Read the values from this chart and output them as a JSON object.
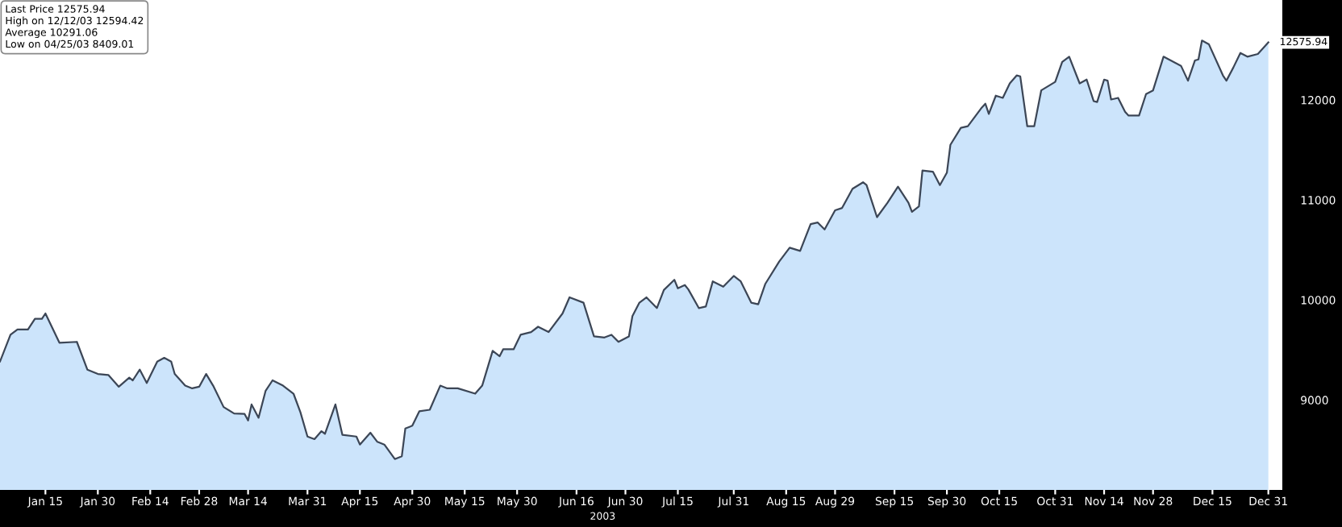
{
  "chart_data": {
    "type": "area",
    "xlabel": "2003",
    "x": [
      "2003-01-02",
      "2003-01-05",
      "2003-01-07",
      "2003-01-10",
      "2003-01-12",
      "2003-01-14",
      "2003-01-15",
      "2003-01-19",
      "2003-01-24",
      "2003-01-27",
      "2003-01-30",
      "2003-02-02",
      "2003-02-05",
      "2003-02-08",
      "2003-02-09",
      "2003-02-11",
      "2003-02-13",
      "2003-02-16",
      "2003-02-18",
      "2003-02-20",
      "2003-02-21",
      "2003-02-24",
      "2003-02-26",
      "2003-02-28",
      "2003-03-02",
      "2003-03-04",
      "2003-03-07",
      "2003-03-10",
      "2003-03-13",
      "2003-03-14",
      "2003-03-15",
      "2003-03-17",
      "2003-03-19",
      "2003-03-21",
      "2003-03-24",
      "2003-03-27",
      "2003-03-29",
      "2003-03-31",
      "2003-04-02",
      "2003-04-04",
      "2003-04-05",
      "2003-04-08",
      "2003-04-10",
      "2003-04-14",
      "2003-04-15",
      "2003-04-18",
      "2003-04-20",
      "2003-04-22",
      "2003-04-25",
      "2003-04-27",
      "2003-04-28",
      "2003-04-30",
      "2003-05-02",
      "2003-05-05",
      "2003-05-08",
      "2003-05-10",
      "2003-05-13",
      "2003-05-18",
      "2003-05-20",
      "2003-05-23",
      "2003-05-25",
      "2003-05-26",
      "2003-05-29",
      "2003-05-31",
      "2003-06-03",
      "2003-06-05",
      "2003-06-08",
      "2003-06-12",
      "2003-06-14",
      "2003-06-18",
      "2003-06-21",
      "2003-06-24",
      "2003-06-26",
      "2003-06-28",
      "2003-07-01",
      "2003-07-02",
      "2003-07-04",
      "2003-07-06",
      "2003-07-09",
      "2003-07-11",
      "2003-07-14",
      "2003-07-15",
      "2003-07-17",
      "2003-07-18",
      "2003-07-21",
      "2003-07-23",
      "2003-07-25",
      "2003-07-28",
      "2003-07-31",
      "2003-08-02",
      "2003-08-05",
      "2003-08-07",
      "2003-08-09",
      "2003-08-13",
      "2003-08-16",
      "2003-08-19",
      "2003-08-22",
      "2003-08-24",
      "2003-08-26",
      "2003-08-29",
      "2003-08-31",
      "2003-09-03",
      "2003-09-06",
      "2003-09-07",
      "2003-09-10",
      "2003-09-13",
      "2003-09-16",
      "2003-09-19",
      "2003-09-20",
      "2003-09-22",
      "2003-09-23",
      "2003-09-26",
      "2003-09-28",
      "2003-09-30",
      "2003-10-01",
      "2003-10-04",
      "2003-10-06",
      "2003-10-10",
      "2003-10-11",
      "2003-10-12",
      "2003-10-14",
      "2003-10-16",
      "2003-10-18",
      "2003-10-20",
      "2003-10-21",
      "2003-10-23",
      "2003-10-25",
      "2003-10-27",
      "2003-10-29",
      "2003-10-31",
      "2003-11-02",
      "2003-11-04",
      "2003-11-07",
      "2003-11-09",
      "2003-11-11",
      "2003-11-12",
      "2003-11-14",
      "2003-11-15",
      "2003-11-16",
      "2003-11-18",
      "2003-11-20",
      "2003-11-21",
      "2003-11-24",
      "2003-11-26",
      "2003-11-28",
      "2003-12-01",
      "2003-12-06",
      "2003-12-08",
      "2003-12-10",
      "2003-12-11",
      "2003-12-12",
      "2003-12-14",
      "2003-12-18",
      "2003-12-19",
      "2003-12-21",
      "2003-12-23",
      "2003-12-25",
      "2003-12-28",
      "2003-12-31"
    ],
    "series": [
      {
        "color": "#cce4fb",
        "values": [
          9384,
          9652,
          9705,
          9705,
          9812,
          9812,
          9865,
          9572,
          9581,
          9303,
          9260,
          9250,
          9132,
          9223,
          9196,
          9303,
          9170,
          9384,
          9421,
          9384,
          9260,
          9143,
          9116,
          9132,
          9260,
          9143,
          8929,
          8865,
          8860,
          8795,
          8955,
          8822,
          9090,
          9196,
          9143,
          9063,
          8875,
          8634,
          8608,
          8688,
          8662,
          8955,
          8651,
          8634,
          8554,
          8672,
          8581,
          8554,
          8409,
          8437,
          8714,
          8742,
          8886,
          8902,
          9143,
          9116,
          9116,
          9063,
          9143,
          9491,
          9437,
          9507,
          9507,
          9652,
          9679,
          9732,
          9679,
          9865,
          10026,
          9973,
          9636,
          9625,
          9652,
          9581,
          9636,
          9839,
          9973,
          10026,
          9919,
          10100,
          10202,
          10117,
          10149,
          10106,
          9919,
          9934,
          10186,
          10133,
          10240,
          10186,
          9973,
          9957,
          10159,
          10384,
          10523,
          10491,
          10759,
          10775,
          10705,
          10897,
          10920,
          11112,
          11177,
          11149,
          10828,
          10972,
          11133,
          10972,
          10881,
          10935,
          11294,
          11283,
          11149,
          11273,
          11551,
          11722,
          11738,
          11925,
          11963,
          11861,
          12043,
          12021,
          12166,
          12246,
          12236,
          11738,
          11738,
          12096,
          12139,
          12181,
          12380,
          12433,
          12166,
          12204,
          11989,
          11979,
          12204,
          12193,
          12005,
          12021,
          11882,
          11844,
          11844,
          12059,
          12096,
          12433,
          12342,
          12193,
          12396,
          12406,
          12594.42,
          12556,
          12246,
          12193,
          12326,
          12470,
          12433,
          12460,
          12575.94
        ]
      }
    ],
    "xlim": [
      "2003-01-02",
      "2004-01-04"
    ],
    "ylim": [
      8100,
      13000
    ],
    "yticks": [
      9000,
      10000,
      11000,
      12000
    ],
    "xticks": [
      {
        "value": "2003-01-15",
        "label": "Jan 15"
      },
      {
        "value": "2003-01-30",
        "label": "Jan 30"
      },
      {
        "value": "2003-02-14",
        "label": "Feb 14"
      },
      {
        "value": "2003-02-28",
        "label": "Feb 28"
      },
      {
        "value": "2003-03-14",
        "label": "Mar 14"
      },
      {
        "value": "2003-03-31",
        "label": "Mar 31"
      },
      {
        "value": "2003-04-15",
        "label": "Apr 15"
      },
      {
        "value": "2003-04-30",
        "label": "Apr 30"
      },
      {
        "value": "2003-05-15",
        "label": "May 15"
      },
      {
        "value": "2003-05-30",
        "label": "May 30"
      },
      {
        "value": "2003-06-16",
        "label": "Jun 16"
      },
      {
        "value": "2003-06-30",
        "label": "Jun 30"
      },
      {
        "value": "2003-07-15",
        "label": "Jul 15"
      },
      {
        "value": "2003-07-31",
        "label": "Jul 31"
      },
      {
        "value": "2003-08-15",
        "label": "Aug 15"
      },
      {
        "value": "2003-08-29",
        "label": "Aug 29"
      },
      {
        "value": "2003-09-15",
        "label": "Sep 15"
      },
      {
        "value": "2003-09-30",
        "label": "Sep 30"
      },
      {
        "value": "2003-10-15",
        "label": "Oct 15"
      },
      {
        "value": "2003-10-31",
        "label": "Oct 31"
      },
      {
        "value": "2003-11-14",
        "label": "Nov 14"
      },
      {
        "value": "2003-11-28",
        "label": "Nov 28"
      },
      {
        "value": "2003-12-15",
        "label": "Dec 15"
      },
      {
        "value": "2003-12-31",
        "label": "Dec 31"
      }
    ],
    "annotations": [
      "Last Price 12575.94",
      "High on 12/12/03 12594.42",
      "Average 10291.06",
      "Low on 04/25/03 8409.01",
      {
        "text": "12575.94",
        "x": "2003-12-31",
        "y": 12575.94
      }
    ],
    "grid": false
  }
}
